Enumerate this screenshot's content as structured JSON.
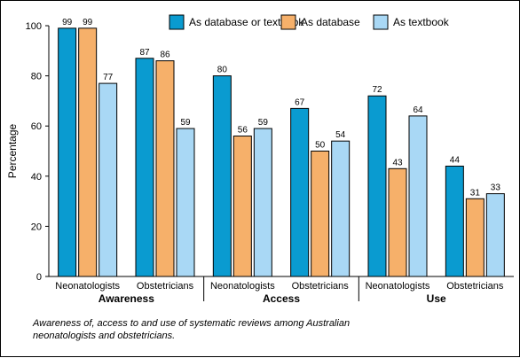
{
  "chart_data": {
    "type": "bar",
    "ylabel": "Percentage",
    "ylim": [
      0,
      100
    ],
    "yticks": [
      0,
      20,
      40,
      60,
      80,
      100
    ],
    "legend_position": "top-right",
    "groups": [
      {
        "label": "Awareness",
        "subcategories": [
          "Neonatologists",
          "Obstetricians"
        ]
      },
      {
        "label": "Access",
        "subcategories": [
          "Neonatologists",
          "Obstetricians"
        ]
      },
      {
        "label": "Use",
        "subcategories": [
          "Neonatologists",
          "Obstetricians"
        ]
      }
    ],
    "categories": [
      "Neonatologists",
      "Obstetricians",
      "Neonatologists",
      "Obstetricians",
      "Neonatologists",
      "Obstetricians"
    ],
    "series": [
      {
        "name": "As database or textbook",
        "color": "#0a9bd0",
        "values": [
          99,
          87,
          80,
          67,
          72,
          44
        ]
      },
      {
        "name": "As database",
        "color": "#f6b06a",
        "values": [
          99,
          86,
          56,
          50,
          43,
          31
        ]
      },
      {
        "name": "As textbook",
        "color": "#a9d8f5",
        "values": [
          77,
          59,
          59,
          54,
          64,
          33
        ]
      }
    ]
  },
  "caption": "Awareness of, access to and use of systematic reviews among Australian neonatologists and obstetricians."
}
